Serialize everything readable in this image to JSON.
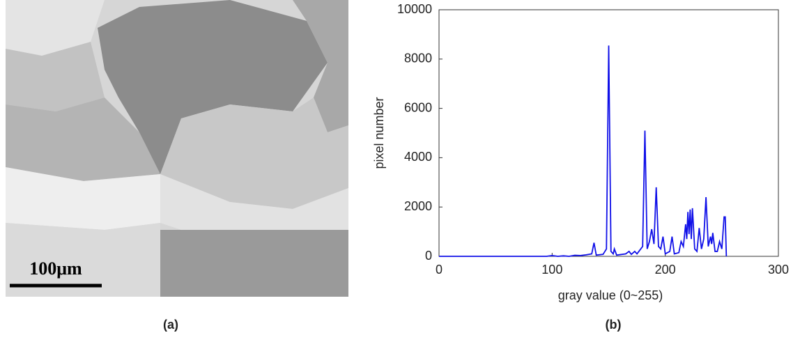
{
  "image": {
    "scale_bar": "100μm",
    "caption": "(a)"
  },
  "chart_data": {
    "type": "line",
    "caption": "(b)",
    "x_label": "gray value (0~255)",
    "y_label": "pixel number",
    "xlim": [
      0,
      300
    ],
    "ylim": [
      0,
      10000
    ],
    "xticks": [
      0,
      100,
      200,
      300
    ],
    "yticks": [
      0,
      2000,
      4000,
      6000,
      8000,
      10000
    ],
    "series": [
      {
        "color": "#1010e8",
        "x": [
          0,
          95,
          100,
          105,
          110,
          115,
          120,
          125,
          130,
          135,
          137,
          139,
          145,
          148,
          150,
          152,
          154,
          155,
          157,
          165,
          168,
          170,
          173,
          175,
          180,
          182,
          184,
          186,
          188,
          190,
          192,
          194,
          196,
          198,
          200,
          204,
          206,
          208,
          212,
          214,
          216,
          218,
          219,
          220,
          221,
          222,
          223,
          224,
          226,
          228,
          230,
          232,
          234,
          236,
          238,
          240,
          241,
          242,
          244,
          246,
          248,
          250,
          252,
          253,
          254
        ],
        "values": [
          0,
          0,
          30,
          0,
          20,
          0,
          40,
          30,
          60,
          100,
          550,
          50,
          80,
          300,
          8550,
          200,
          100,
          300,
          50,
          100,
          200,
          80,
          200,
          100,
          400,
          5100,
          300,
          600,
          1100,
          500,
          2800,
          400,
          300,
          800,
          100,
          200,
          800,
          100,
          150,
          600,
          400,
          1300,
          700,
          1800,
          900,
          1900,
          700,
          1950,
          300,
          200,
          1150,
          300,
          700,
          2400,
          400,
          800,
          500,
          950,
          200,
          200,
          600,
          300,
          1600,
          1600,
          0
        ]
      }
    ]
  }
}
